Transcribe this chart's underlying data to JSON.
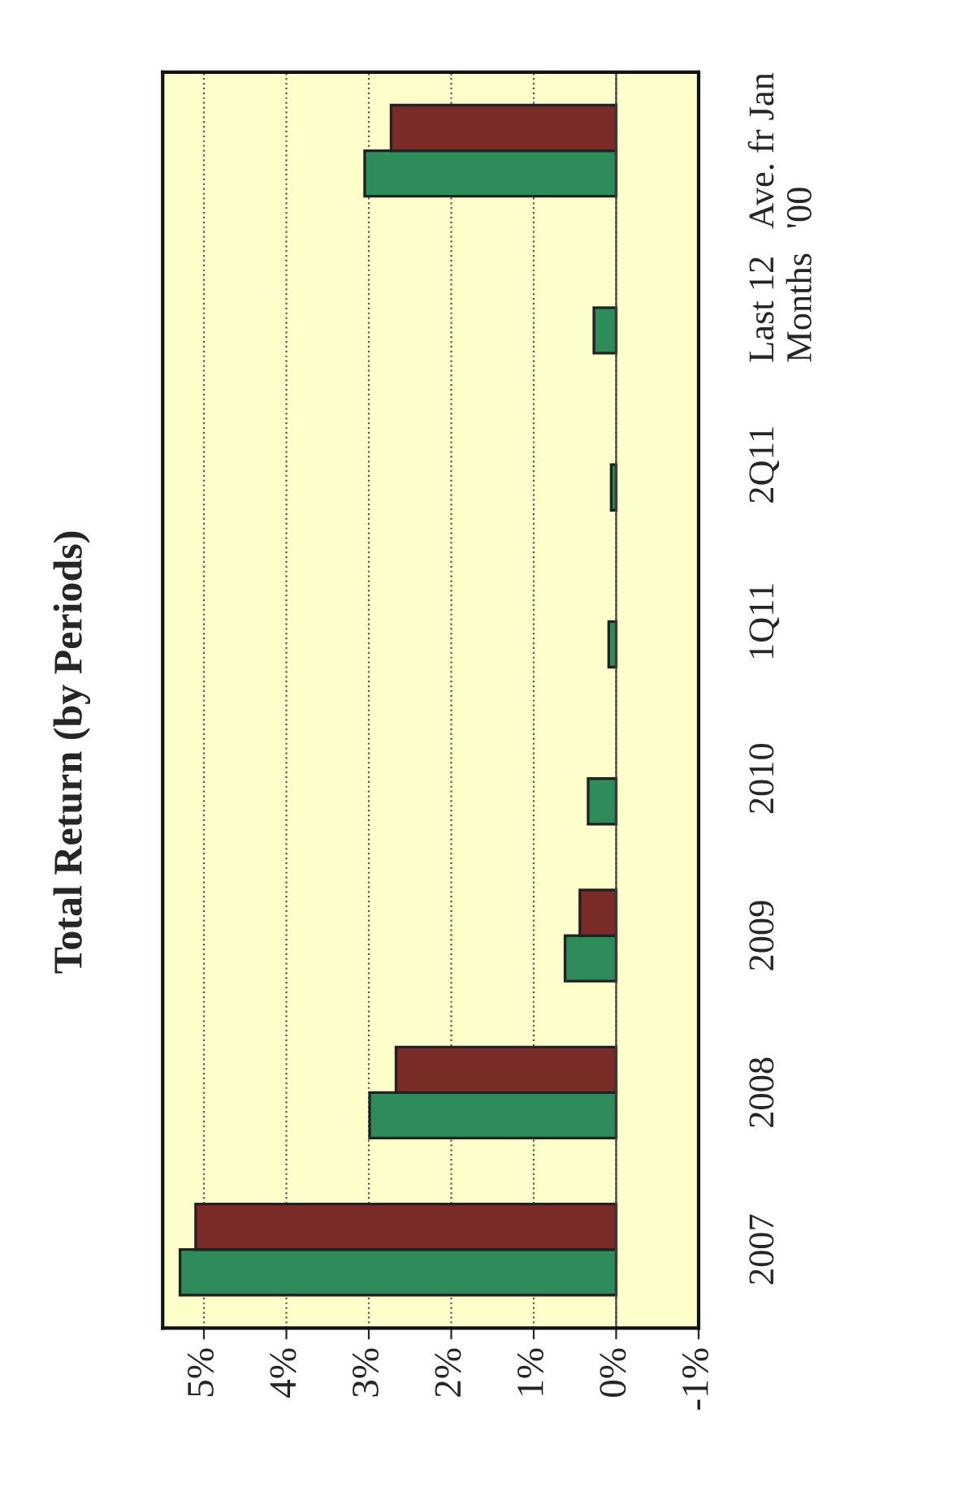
{
  "chart_data": {
    "type": "bar",
    "orientation": "horizontal",
    "title": "Total Return (by Periods)",
    "categories": [
      "Ave. fr Jan\n'00",
      "Last 12\nMonths",
      "2Q11",
      "1Q11",
      "2010",
      "2009",
      "2008",
      "2007"
    ],
    "series": [
      {
        "color": "#2e8b5a",
        "values": [
          3.05,
          0.27,
          0.06,
          0.09,
          0.34,
          0.62,
          2.99,
          5.29
        ]
      },
      {
        "color": "#7b2c28",
        "values": [
          2.73,
          null,
          null,
          null,
          null,
          0.44,
          2.67,
          5.1
        ]
      }
    ],
    "xlim": [
      5.5,
      -1
    ],
    "xticks": [
      {
        "value": 5,
        "label": "5%"
      },
      {
        "value": 4,
        "label": "4%"
      },
      {
        "value": 3,
        "label": "3%"
      },
      {
        "value": 2,
        "label": "2%"
      },
      {
        "value": 1,
        "label": "1%"
      },
      {
        "value": 0,
        "label": "0%"
      },
      {
        "value": -1,
        "label": "-1%"
      }
    ],
    "grid": "x",
    "legend": false
  }
}
